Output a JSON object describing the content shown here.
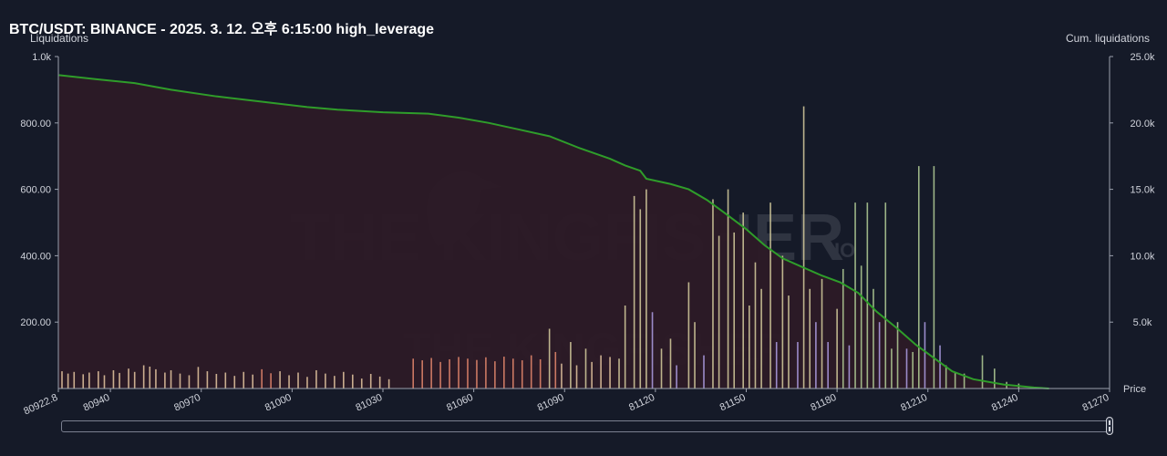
{
  "header": {
    "title": "BTC/USDT: BINANCE - 2025. 3. 12. 오후 6:15:00 high_leverage"
  },
  "watermark": {
    "brand": "THE KINGFISHER",
    "suffix": "IO"
  },
  "chart_data": {
    "type": "bar",
    "ylabel": "Liquidations",
    "y2label": "Cum. liquidations",
    "xlabel": "Price",
    "xlim": [
      80922.8,
      81270
    ],
    "ylim": [
      0,
      1000
    ],
    "y2lim": [
      0,
      25000
    ],
    "x_ticks": [
      "80922.8",
      "80940",
      "80970",
      "81000",
      "81030",
      "81060",
      "81090",
      "81120",
      "81150",
      "81180",
      "81210",
      "81240",
      "81270"
    ],
    "y_ticks": [
      "1.0k",
      "800.00",
      "600.00",
      "400.00",
      "200.00"
    ],
    "y2_ticks": [
      "25.0k",
      "20.0k",
      "15.0k",
      "10.0k",
      "5.0k"
    ],
    "grid": false,
    "colors": {
      "cumulative_line": "#2f9d2a",
      "cumulative_fill": "#2c1a26",
      "bar_low": "#e8c9a2",
      "bar_orange": "#e98a6e",
      "bar_light": "#d8d0a0",
      "bar_violet": "#b0a0e8",
      "bar_green": "#b4d098"
    },
    "series": [
      {
        "name": "Cum. liquidations",
        "type": "line",
        "points": [
          [
            80923,
            23600
          ],
          [
            80935,
            23300
          ],
          [
            80948,
            23000
          ],
          [
            80960,
            22500
          ],
          [
            80975,
            22000
          ],
          [
            80990,
            21600
          ],
          [
            81005,
            21200
          ],
          [
            81015,
            21000
          ],
          [
            81030,
            20800
          ],
          [
            81045,
            20700
          ],
          [
            81055,
            20400
          ],
          [
            81065,
            20000
          ],
          [
            81075,
            19500
          ],
          [
            81085,
            19000
          ],
          [
            81095,
            18100
          ],
          [
            81105,
            17300
          ],
          [
            81110,
            16800
          ],
          [
            81115,
            16400
          ],
          [
            81117,
            15800
          ],
          [
            81125,
            15400
          ],
          [
            81131,
            15000
          ],
          [
            81137,
            14200
          ],
          [
            81143,
            13200
          ],
          [
            81150,
            12000
          ],
          [
            81156,
            10800
          ],
          [
            81162,
            9800
          ],
          [
            81168,
            9200
          ],
          [
            81175,
            8500
          ],
          [
            81181,
            8000
          ],
          [
            81187,
            7200
          ],
          [
            81193,
            5800
          ],
          [
            81200,
            4500
          ],
          [
            81206,
            3300
          ],
          [
            81212,
            2300
          ],
          [
            81218,
            1300
          ],
          [
            81225,
            700
          ],
          [
            81235,
            300
          ],
          [
            81245,
            80
          ],
          [
            81250,
            0
          ]
        ]
      },
      {
        "name": "Liquidations",
        "type": "bar",
        "bars": [
          [
            80924,
            52,
            "#e8c9a2"
          ],
          [
            80926,
            45,
            "#e8c9a2"
          ],
          [
            80928,
            50,
            "#e8c9a2"
          ],
          [
            80931,
            43,
            "#e8c9a2"
          ],
          [
            80933,
            48,
            "#e8c9a2"
          ],
          [
            80936,
            52,
            "#e8c9a2"
          ],
          [
            80938,
            40,
            "#e8c9a2"
          ],
          [
            80941,
            55,
            "#e8c9a2"
          ],
          [
            80943,
            47,
            "#e8c9a2"
          ],
          [
            80946,
            60,
            "#e8c9a2"
          ],
          [
            80948,
            50,
            "#e8c9a2"
          ],
          [
            80951,
            70,
            "#e8c9a2"
          ],
          [
            80953,
            66,
            "#e8c9a2"
          ],
          [
            80955,
            58,
            "#e8c9a2"
          ],
          [
            80958,
            48,
            "#e8c9a2"
          ],
          [
            80960,
            55,
            "#e8c9a2"
          ],
          [
            80963,
            45,
            "#e8c9a2"
          ],
          [
            80966,
            40,
            "#e8c9a2"
          ],
          [
            80969,
            65,
            "#e8c9a2"
          ],
          [
            80972,
            52,
            "#e8c9a2"
          ],
          [
            80975,
            44,
            "#e8c9a2"
          ],
          [
            80978,
            48,
            "#e8c9a2"
          ],
          [
            80981,
            38,
            "#e8c9a2"
          ],
          [
            80984,
            50,
            "#e8c9a2"
          ],
          [
            80987,
            42,
            "#e8c9a2"
          ],
          [
            80990,
            58,
            "#e98a6e"
          ],
          [
            80993,
            46,
            "#e98a6e"
          ],
          [
            80996,
            52,
            "#e8c9a2"
          ],
          [
            80999,
            40,
            "#e8c9a2"
          ],
          [
            81002,
            48,
            "#e8c9a2"
          ],
          [
            81005,
            35,
            "#e8c9a2"
          ],
          [
            81008,
            55,
            "#e8c9a2"
          ],
          [
            81011,
            45,
            "#e8c9a2"
          ],
          [
            81014,
            38,
            "#e8c9a2"
          ],
          [
            81017,
            50,
            "#e8c9a2"
          ],
          [
            81020,
            42,
            "#e8c9a2"
          ],
          [
            81023,
            30,
            "#e8c9a2"
          ],
          [
            81026,
            44,
            "#e8c9a2"
          ],
          [
            81029,
            36,
            "#e8c9a2"
          ],
          [
            81032,
            28,
            "#e8c9a2"
          ],
          [
            81040,
            90,
            "#e98a6e"
          ],
          [
            81043,
            85,
            "#e98a6e"
          ],
          [
            81046,
            92,
            "#e98a6e"
          ],
          [
            81049,
            80,
            "#e98a6e"
          ],
          [
            81052,
            88,
            "#e98a6e"
          ],
          [
            81055,
            95,
            "#e98a6e"
          ],
          [
            81058,
            90,
            "#e98a6e"
          ],
          [
            81061,
            86,
            "#e98a6e"
          ],
          [
            81064,
            94,
            "#e98a6e"
          ],
          [
            81067,
            82,
            "#e98a6e"
          ],
          [
            81070,
            96,
            "#e98a6e"
          ],
          [
            81073,
            90,
            "#e98a6e"
          ],
          [
            81076,
            85,
            "#e98a6e"
          ],
          [
            81079,
            100,
            "#e98a6e"
          ],
          [
            81082,
            88,
            "#e98a6e"
          ],
          [
            81085,
            180,
            "#d8d0a0"
          ],
          [
            81087,
            110,
            "#e98a6e"
          ],
          [
            81089,
            75,
            "#e8c9a2"
          ],
          [
            81092,
            140,
            "#d8d0a0"
          ],
          [
            81094,
            70,
            "#e8c9a2"
          ],
          [
            81097,
            120,
            "#d8d0a0"
          ],
          [
            81099,
            80,
            "#e8c9a2"
          ],
          [
            81102,
            100,
            "#e8c9a2"
          ],
          [
            81105,
            95,
            "#e8c9a2"
          ],
          [
            81108,
            90,
            "#d8d0a0"
          ],
          [
            81110,
            250,
            "#d8d0a0"
          ],
          [
            81113,
            580,
            "#d8d0a0"
          ],
          [
            81115,
            540,
            "#d8d0a0"
          ],
          [
            81117,
            600,
            "#d8d0a0"
          ],
          [
            81119,
            230,
            "#b0a0e8"
          ],
          [
            81122,
            120,
            "#d8d0a0"
          ],
          [
            81125,
            150,
            "#d8d0a0"
          ],
          [
            81127,
            70,
            "#b0a0e8"
          ],
          [
            81131,
            320,
            "#d8d0a0"
          ],
          [
            81133,
            200,
            "#d8d0a0"
          ],
          [
            81136,
            100,
            "#b0a0e8"
          ],
          [
            81139,
            570,
            "#d8d0a0"
          ],
          [
            81141,
            460,
            "#d8d0a0"
          ],
          [
            81144,
            600,
            "#d8d0a0"
          ],
          [
            81146,
            470,
            "#d8d0a0"
          ],
          [
            81149,
            530,
            "#d8d0a0"
          ],
          [
            81151,
            250,
            "#d8d0a0"
          ],
          [
            81153,
            380,
            "#d8d0a0"
          ],
          [
            81155,
            300,
            "#d8d0a0"
          ],
          [
            81158,
            560,
            "#d8d0a0"
          ],
          [
            81160,
            140,
            "#b0a0e8"
          ],
          [
            81162,
            400,
            "#d8d0a0"
          ],
          [
            81164,
            280,
            "#d8d0a0"
          ],
          [
            81167,
            140,
            "#b0a0e8"
          ],
          [
            81169,
            850,
            "#d8d0a0"
          ],
          [
            81171,
            300,
            "#d8d0a0"
          ],
          [
            81173,
            200,
            "#b0a0e8"
          ],
          [
            81175,
            330,
            "#d8d0a0"
          ],
          [
            81177,
            140,
            "#b0a0e8"
          ],
          [
            81180,
            240,
            "#d8d0a0"
          ],
          [
            81182,
            360,
            "#b4d098"
          ],
          [
            81184,
            130,
            "#b0a0e8"
          ],
          [
            81186,
            560,
            "#b4d098"
          ],
          [
            81188,
            370,
            "#b4d098"
          ],
          [
            81190,
            560,
            "#b4d098"
          ],
          [
            81192,
            300,
            "#b4d098"
          ],
          [
            81194,
            200,
            "#b0a0e8"
          ],
          [
            81196,
            560,
            "#b4d098"
          ],
          [
            81198,
            120,
            "#b4d098"
          ],
          [
            81200,
            200,
            "#b4d098"
          ],
          [
            81203,
            120,
            "#b0a0e8"
          ],
          [
            81205,
            110,
            "#b4d098"
          ],
          [
            81207,
            670,
            "#b4d098"
          ],
          [
            81209,
            200,
            "#b0a0e8"
          ],
          [
            81212,
            670,
            "#b4d098"
          ],
          [
            81214,
            130,
            "#b0a0e8"
          ],
          [
            81216,
            70,
            "#b4d098"
          ],
          [
            81219,
            50,
            "#b4d098"
          ],
          [
            81222,
            45,
            "#b4d098"
          ],
          [
            81228,
            100,
            "#b4d098"
          ],
          [
            81232,
            60,
            "#b4d098"
          ],
          [
            81236,
            20,
            "#b4d098"
          ],
          [
            81240,
            15,
            "#b4d098"
          ]
        ]
      }
    ]
  }
}
